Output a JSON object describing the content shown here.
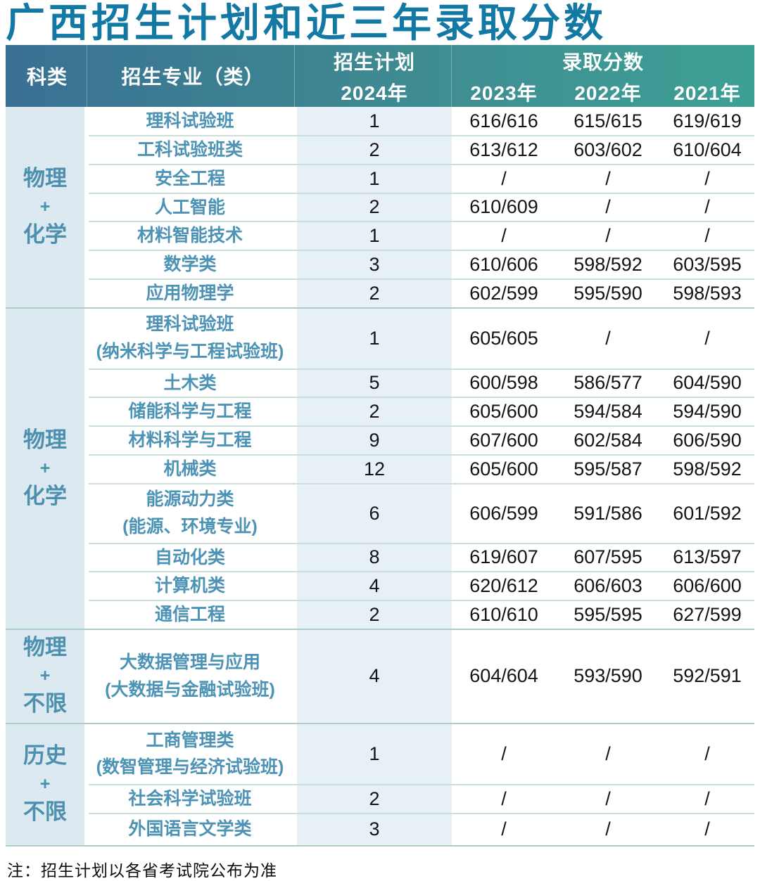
{
  "title": "广西招生计划和近三年录取分数",
  "note": "注：招生计划以各省考试院公布为准",
  "header": {
    "category": "科类",
    "major": "招生专业（类）",
    "plan_line1": "招生计划",
    "plan_line2": "2024年",
    "scores": "录取分数",
    "years": [
      "2023年",
      "2022年",
      "2021年"
    ]
  },
  "colors": {
    "title_text": "#1279a4",
    "header_left": "#3a7093",
    "header_right": "#3da095",
    "header_text": "#ffffff",
    "category_bg": "#dde9f1",
    "category_text": "#4c8fae",
    "plan_bg": "#e7f0f6",
    "major_text": "#4c93b5",
    "score_text": "#141414",
    "row_line": "#cbe0db",
    "group_line": "#aecbc6"
  },
  "chart_data": {
    "type": "table",
    "title": "广西招生计划和近三年录取分数",
    "columns": [
      "科类",
      "招生专业（类）",
      "招生计划 2024年",
      "录取分数 2023年",
      "录取分数 2022年",
      "录取分数 2021年"
    ],
    "groups": [
      {
        "category": [
          "物理",
          "+",
          "化学"
        ],
        "rows": [
          {
            "major": [
              "理科试验班"
            ],
            "plan": "1",
            "scores": [
              "616/616",
              "615/615",
              "619/619"
            ]
          },
          {
            "major": [
              "工科试验班类"
            ],
            "plan": "2",
            "scores": [
              "613/612",
              "603/602",
              "610/604"
            ]
          },
          {
            "major": [
              "安全工程"
            ],
            "plan": "1",
            "scores": [
              "/",
              "/",
              "/"
            ]
          },
          {
            "major": [
              "人工智能"
            ],
            "plan": "2",
            "scores": [
              "610/609",
              "/",
              "/"
            ]
          },
          {
            "major": [
              "材料智能技术"
            ],
            "plan": "1",
            "scores": [
              "/",
              "/",
              "/"
            ]
          },
          {
            "major": [
              "数学类"
            ],
            "plan": "3",
            "scores": [
              "610/606",
              "598/592",
              "603/595"
            ]
          },
          {
            "major": [
              "应用物理学"
            ],
            "plan": "2",
            "scores": [
              "602/599",
              "595/590",
              "598/593"
            ]
          }
        ]
      },
      {
        "category": [
          "物理",
          "+",
          "化学"
        ],
        "rows": [
          {
            "major": [
              "理科试验班",
              "(纳米科学与工程试验班)"
            ],
            "plan": "1",
            "scores": [
              "605/605",
              "/",
              "/"
            ]
          },
          {
            "major": [
              "土木类"
            ],
            "plan": "5",
            "scores": [
              "600/598",
              "586/577",
              "604/590"
            ]
          },
          {
            "major": [
              "储能科学与工程"
            ],
            "plan": "2",
            "scores": [
              "605/600",
              "594/584",
              "594/590"
            ]
          },
          {
            "major": [
              "材料科学与工程"
            ],
            "plan": "9",
            "scores": [
              "607/600",
              "602/584",
              "606/590"
            ]
          },
          {
            "major": [
              "机械类"
            ],
            "plan": "12",
            "scores": [
              "605/600",
              "595/587",
              "598/592"
            ]
          },
          {
            "major": [
              "能源动力类",
              "(能源、环境专业)"
            ],
            "plan": "6",
            "scores": [
              "606/599",
              "591/586",
              "601/592"
            ]
          },
          {
            "major": [
              "自动化类"
            ],
            "plan": "8",
            "scores": [
              "619/607",
              "607/595",
              "613/597"
            ]
          },
          {
            "major": [
              "计算机类"
            ],
            "plan": "4",
            "scores": [
              "620/612",
              "606/603",
              "606/600"
            ]
          },
          {
            "major": [
              "通信工程"
            ],
            "plan": "2",
            "scores": [
              "610/610",
              "595/595",
              "627/599"
            ]
          }
        ]
      },
      {
        "category": [
          "物理",
          "+",
          "不限"
        ],
        "rows": [
          {
            "major": [
              "大数据管理与应用",
              "(大数据与金融试验班)"
            ],
            "plan": "4",
            "scores": [
              "604/604",
              "593/590",
              "592/591"
            ]
          }
        ]
      },
      {
        "category": [
          "历史",
          "+",
          "不限"
        ],
        "rows": [
          {
            "major": [
              "工商管理类",
              "(数智管理与经济试验班)"
            ],
            "plan": "1",
            "scores": [
              "/",
              "/",
              "/"
            ]
          },
          {
            "major": [
              "社会科学试验班"
            ],
            "plan": "2",
            "scores": [
              "/",
              "/",
              "/"
            ]
          },
          {
            "major": [
              "外国语言文学类"
            ],
            "plan": "3",
            "scores": [
              "/",
              "/",
              "/"
            ]
          }
        ]
      }
    ]
  }
}
